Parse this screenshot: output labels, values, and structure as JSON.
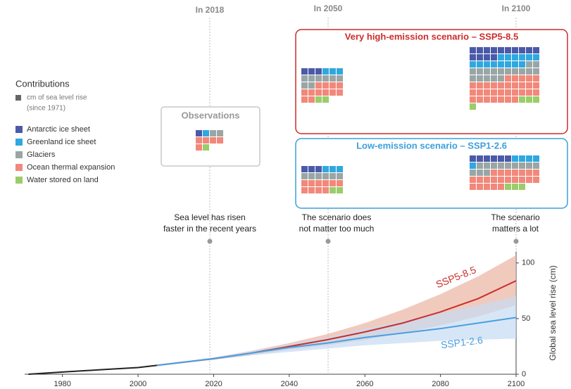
{
  "legend": {
    "title": "Contributions",
    "note": [
      "cm of sea level rise",
      "(since 1971)"
    ],
    "note_color": "#777777",
    "components": [
      {
        "name": "Antarctic ice sheet",
        "color": "#4a5aa8"
      },
      {
        "name": "Greenland ice sheet",
        "color": "#2fa8e0"
      },
      {
        "name": "Glaciers",
        "color": "#9aa6a6"
      },
      {
        "name": "Ocean thermal expansion",
        "color": "#f2887a"
      },
      {
        "name": "Water stored on land",
        "color": "#9acd6a"
      }
    ]
  },
  "columns": [
    "In 2018",
    "In 2050",
    "In 2100"
  ],
  "observations": {
    "title": "Observations",
    "counts": [
      1,
      1,
      2,
      5,
      1
    ]
  },
  "scenarios": [
    {
      "title": "Very high-emission scenario – SSP5-8.5",
      "color": "#cc2b2b",
      "in_2050": [
        3,
        3,
        8,
        12,
        2
      ],
      "in_2100": [
        14,
        14,
        17,
        32,
        4
      ]
    },
    {
      "title": "Low-emission scenario – SSP1-2.6",
      "color": "#3aa0dc",
      "in_2050": [
        3,
        3,
        6,
        10,
        2
      ],
      "in_2100": [
        6,
        5,
        12,
        22,
        3
      ]
    }
  ],
  "annotations": [
    {
      "lines": [
        "Sea level has risen",
        "faster in the recent years"
      ]
    },
    {
      "lines": [
        "The scenario does",
        "not matter too much"
      ]
    },
    {
      "lines": [
        "The scenario",
        "matters a lot"
      ]
    }
  ],
  "chart_data": {
    "type": "line",
    "y_label": "Global sea level rise (cm)",
    "xlim": [
      1970,
      2100
    ],
    "xticks": [
      1980,
      2000,
      2020,
      2040,
      2060,
      2080,
      2100
    ],
    "ylim": [
      0,
      110
    ],
    "yticks": [
      0,
      50,
      100
    ],
    "series": [
      {
        "name": null,
        "color": "#222222",
        "x": [
          1971,
          1980,
          1990,
          2000,
          2005
        ],
        "values": [
          0,
          2,
          4,
          6,
          8
        ]
      },
      {
        "name": "SSP5-8.5",
        "color": "#c8302c",
        "band_color": "#ebb4a2",
        "x": [
          2005,
          2020,
          2030,
          2040,
          2050,
          2060,
          2070,
          2080,
          2090,
          2100
        ],
        "values": [
          8,
          14,
          19,
          25,
          31,
          38,
          46,
          56,
          68,
          84
        ],
        "lower": [
          8,
          13,
          17,
          22,
          26,
          31,
          37,
          44,
          52,
          62
        ],
        "upper": [
          8,
          15,
          21,
          28,
          36,
          46,
          58,
          72,
          88,
          107
        ]
      },
      {
        "name": "SSP1-2.6",
        "color": "#4a9fe0",
        "band_color": "#c6dcf2",
        "x": [
          2005,
          2020,
          2030,
          2040,
          2050,
          2060,
          2070,
          2080,
          2090,
          2100
        ],
        "values": [
          8,
          14,
          19,
          24,
          28,
          33,
          37,
          41,
          46,
          51
        ],
        "lower": [
          8,
          13,
          17,
          20,
          23,
          26,
          28,
          30,
          31,
          32
        ],
        "upper": [
          8,
          15,
          21,
          27,
          33,
          41,
          48,
          55,
          62,
          70
        ]
      }
    ]
  }
}
